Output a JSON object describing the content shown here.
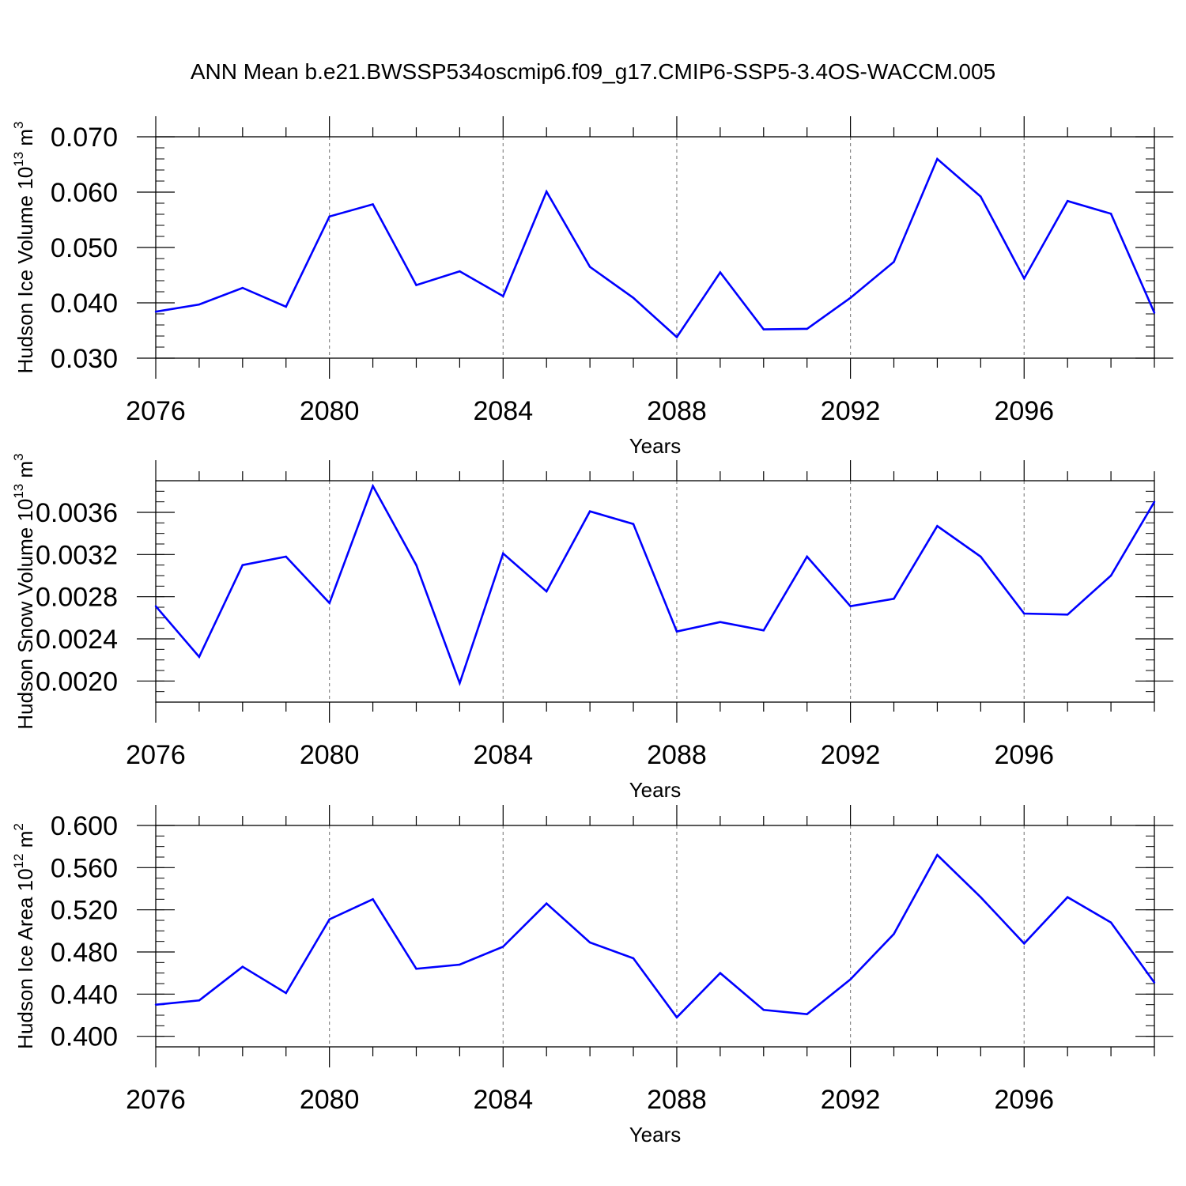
{
  "title": "ANN Mean b.e21.BWSSP534oscmip6.f09_g17.CMIP6-SSP5-3.4OS-WACCM.005",
  "line_color": "#0000ff",
  "chart_data": [
    {
      "type": "line",
      "ylabel": "Hudson Ice Volume 10",
      "ylabel_exp": "13",
      "ylabel_unit": " m",
      "ylabel_unit_exp": "3",
      "xlabel": "Years",
      "xlim": [
        2076,
        2099
      ],
      "ylim": [
        0.03,
        0.07
      ],
      "y_minor_step": 0.002,
      "x_ticks": [
        2076,
        2080,
        2084,
        2088,
        2092,
        2096
      ],
      "x_tick_labels": [
        "2076",
        "2080",
        "2084",
        "2088",
        "2092",
        "2096"
      ],
      "y_ticks": [
        0.03,
        0.04,
        0.05,
        0.06,
        0.07
      ],
      "y_tick_labels": [
        "0.030",
        "0.040",
        "0.050",
        "0.060",
        "0.070"
      ],
      "grid": "vertical dashed at major x ticks",
      "x": [
        2076,
        2077,
        2078,
        2079,
        2080,
        2081,
        2082,
        2083,
        2084,
        2085,
        2086,
        2087,
        2088,
        2089,
        2090,
        2091,
        2092,
        2093,
        2094,
        2095,
        2096,
        2097,
        2098,
        2099
      ],
      "values": [
        0.0384,
        0.0397,
        0.0427,
        0.0393,
        0.0556,
        0.0578,
        0.0432,
        0.0457,
        0.0412,
        0.0601,
        0.0465,
        0.0409,
        0.0338,
        0.0455,
        0.0352,
        0.0353,
        0.0409,
        0.0474,
        0.066,
        0.0592,
        0.0444,
        0.0584,
        0.0561,
        0.0382
      ]
    },
    {
      "type": "line",
      "ylabel": "Hudson Snow Volume 10",
      "ylabel_exp": "13",
      "ylabel_unit": " m",
      "ylabel_unit_exp": "3",
      "xlabel": "Years",
      "xlim": [
        2076,
        2099
      ],
      "ylim": [
        0.0018,
        0.0039
      ],
      "y_minor_step": 0.0001,
      "x_ticks": [
        2076,
        2080,
        2084,
        2088,
        2092,
        2096
      ],
      "x_tick_labels": [
        "2076",
        "2080",
        "2084",
        "2088",
        "2092",
        "2096"
      ],
      "y_ticks": [
        0.002,
        0.0024,
        0.0028,
        0.0032,
        0.0036
      ],
      "y_tick_labels": [
        "0.0020",
        "0.0024",
        "0.0028",
        "0.0032",
        "0.0036"
      ],
      "grid": "vertical dashed at major x ticks",
      "x": [
        2076,
        2077,
        2078,
        2079,
        2080,
        2081,
        2082,
        2083,
        2084,
        2085,
        2086,
        2087,
        2088,
        2089,
        2090,
        2091,
        2092,
        2093,
        2094,
        2095,
        2096,
        2097,
        2098,
        2099
      ],
      "values": [
        0.00271,
        0.00223,
        0.0031,
        0.00318,
        0.00274,
        0.00385,
        0.0031,
        0.00198,
        0.00321,
        0.00285,
        0.00361,
        0.00349,
        0.00247,
        0.00256,
        0.00248,
        0.00318,
        0.00271,
        0.00278,
        0.00347,
        0.00318,
        0.00264,
        0.00263,
        0.003,
        0.0037
      ]
    },
    {
      "type": "line",
      "ylabel": "Hudson Ice Area 10",
      "ylabel_exp": "12",
      "ylabel_unit": " m",
      "ylabel_unit_exp": "2",
      "xlabel": "Years",
      "xlim": [
        2076,
        2099
      ],
      "ylim": [
        0.39,
        0.6
      ],
      "y_minor_step": 0.01,
      "x_ticks": [
        2076,
        2080,
        2084,
        2088,
        2092,
        2096
      ],
      "x_tick_labels": [
        "2076",
        "2080",
        "2084",
        "2088",
        "2092",
        "2096"
      ],
      "y_ticks": [
        0.4,
        0.44,
        0.48,
        0.52,
        0.56,
        0.6
      ],
      "y_tick_labels": [
        "0.400",
        "0.440",
        "0.480",
        "0.520",
        "0.560",
        "0.600"
      ],
      "grid": "vertical dashed at major x ticks",
      "x": [
        2076,
        2077,
        2078,
        2079,
        2080,
        2081,
        2082,
        2083,
        2084,
        2085,
        2086,
        2087,
        2088,
        2089,
        2090,
        2091,
        2092,
        2093,
        2094,
        2095,
        2096,
        2097,
        2098,
        2099
      ],
      "values": [
        0.43,
        0.434,
        0.466,
        0.441,
        0.511,
        0.53,
        0.464,
        0.468,
        0.485,
        0.526,
        0.489,
        0.474,
        0.418,
        0.46,
        0.425,
        0.421,
        0.454,
        0.497,
        0.572,
        0.532,
        0.488,
        0.532,
        0.508,
        0.451
      ]
    }
  ]
}
